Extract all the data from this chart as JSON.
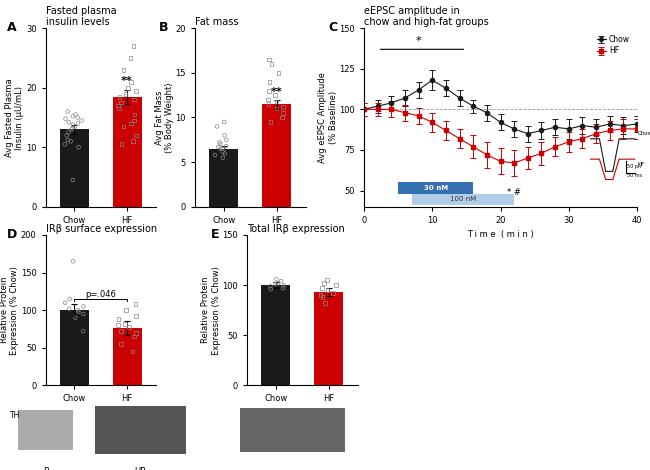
{
  "panel_A": {
    "title": "Fasted plasma\ninsulin levels",
    "label": "A",
    "ylabel": "Avg Fasted Plasma\nInsulin (μU/mL)",
    "categories": [
      "Chow",
      "HF"
    ],
    "bar_values": [
      13.0,
      18.5
    ],
    "bar_colors": [
      "#1a1a1a",
      "#cc0000"
    ],
    "sem": [
      0.8,
      1.2
    ],
    "ylim": [
      0,
      30
    ],
    "yticks": [
      0,
      10,
      20,
      30
    ],
    "significance": "**",
    "chow_dots": [
      4.5,
      10.0,
      10.5,
      11.0,
      11.2,
      12.0,
      12.5,
      13.0,
      13.2,
      13.5,
      13.8,
      14.0,
      14.2,
      14.5,
      14.8,
      15.0,
      15.2,
      15.5,
      16.0
    ],
    "hf_dots": [
      10.5,
      11.0,
      12.0,
      13.5,
      14.0,
      14.5,
      15.5,
      16.5,
      17.0,
      17.5,
      18.0,
      18.5,
      19.0,
      19.5,
      20.0,
      21.0,
      23.0,
      25.0,
      27.0
    ]
  },
  "panel_B": {
    "title": "Fat mass",
    "label": "B",
    "ylabel": "Avg Fat Mass\n(% Body Weight)",
    "categories": [
      "Chow",
      "HF"
    ],
    "bar_values": [
      6.5,
      11.5
    ],
    "bar_colors": [
      "#1a1a1a",
      "#cc0000"
    ],
    "sem": [
      0.3,
      0.5
    ],
    "ylim": [
      0,
      20
    ],
    "yticks": [
      0,
      5,
      10,
      15,
      20
    ],
    "significance": "**",
    "chow_dots": [
      5.5,
      5.8,
      6.0,
      6.2,
      6.5,
      6.5,
      6.7,
      6.8,
      7.0,
      7.2,
      7.5,
      8.0,
      9.0,
      9.5
    ],
    "hf_dots": [
      9.5,
      10.0,
      10.5,
      11.0,
      11.2,
      11.5,
      11.8,
      12.0,
      12.5,
      13.0,
      14.0,
      15.0,
      16.0,
      16.5
    ]
  },
  "panel_C": {
    "title": "eEPSC amplitude in\nchow and high-fat groups",
    "label": "C",
    "ylabel": "Avg eEPSC Amplitude\n(% Baseline)",
    "xlabel": "T i m e  ( m i n )",
    "ylim": [
      40,
      150
    ],
    "yticks": [
      50,
      75,
      100,
      125,
      150
    ],
    "xlim": [
      0,
      40
    ],
    "xticks": [
      0,
      10,
      20,
      30,
      40
    ],
    "chow_x": [
      0,
      2,
      4,
      6,
      8,
      10,
      12,
      14,
      16,
      18,
      20,
      22,
      24,
      26,
      28,
      30,
      32,
      34,
      36,
      38,
      40
    ],
    "chow_y": [
      100,
      102,
      104,
      107,
      112,
      118,
      113,
      107,
      102,
      98,
      92,
      88,
      85,
      87,
      89,
      88,
      90,
      89,
      91,
      90,
      91
    ],
    "chow_err": [
      4,
      4,
      4,
      5,
      5,
      6,
      5,
      5,
      4,
      5,
      5,
      5,
      5,
      5,
      5,
      6,
      5,
      5,
      5,
      5,
      5
    ],
    "hf_x": [
      0,
      2,
      4,
      6,
      8,
      10,
      12,
      14,
      16,
      18,
      20,
      22,
      24,
      26,
      28,
      30,
      32,
      34,
      36,
      38,
      40
    ],
    "hf_y": [
      100,
      100,
      100,
      98,
      96,
      92,
      87,
      82,
      77,
      72,
      68,
      67,
      70,
      73,
      77,
      80,
      82,
      85,
      87,
      88,
      88
    ],
    "hf_err": [
      4,
      4,
      5,
      5,
      5,
      6,
      6,
      6,
      7,
      8,
      8,
      8,
      7,
      7,
      6,
      6,
      6,
      6,
      6,
      6,
      6
    ],
    "chow_color": "#1a1a1a",
    "hf_color": "#cc0000",
    "box30nm_color": "#1e5fa8",
    "box100nm_color": "#a8c8e8",
    "dashed_y": 100
  },
  "panel_D": {
    "title": "IRβ surface expression",
    "label": "D",
    "ylabel": "Relative Protein\nExpression (% Chow)",
    "categories": [
      "Chow",
      "HF"
    ],
    "bar_values": [
      100,
      76
    ],
    "bar_colors": [
      "#1a1a1a",
      "#cc0000"
    ],
    "sem": [
      8,
      9
    ],
    "ylim": [
      0,
      200
    ],
    "yticks": [
      0,
      50,
      100,
      150,
      200
    ],
    "pval": "p=.046",
    "chow_dots": [
      72,
      90,
      95,
      98,
      100,
      102,
      105,
      110,
      115,
      165
    ],
    "hf_dots": [
      45,
      55,
      65,
      70,
      72,
      78,
      80,
      82,
      88,
      92,
      100,
      108
    ]
  },
  "panel_E": {
    "title": "Total IRβ expression",
    "label": "E",
    "ylabel": "Relative Protein\nExpression (% Chow)",
    "categories": [
      "Chow",
      "HF"
    ],
    "bar_values": [
      100,
      93
    ],
    "bar_colors": [
      "#1a1a1a",
      "#cc0000"
    ],
    "sem": [
      3,
      4
    ],
    "ylim": [
      0,
      150
    ],
    "yticks": [
      0,
      50,
      100,
      150
    ],
    "chow_dots": [
      96,
      97,
      99,
      100,
      101,
      102,
      104,
      106
    ],
    "hf_dots": [
      82,
      88,
      90,
      92,
      95,
      97,
      100,
      102,
      105
    ]
  },
  "background_color": "#ffffff"
}
